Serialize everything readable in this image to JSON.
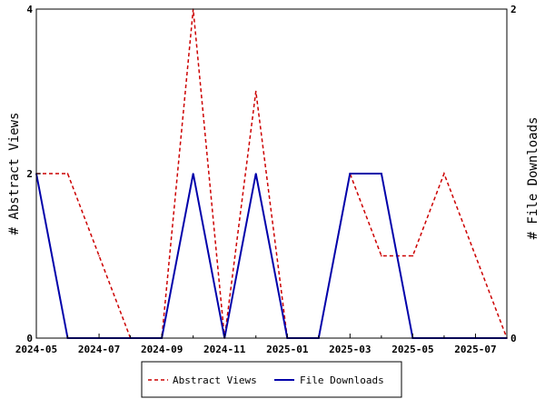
{
  "chart_data": {
    "type": "line",
    "x": [
      "2024-05",
      "2024-06",
      "2024-07",
      "2024-08",
      "2024-09",
      "2024-10",
      "2024-11",
      "2024-12",
      "2025-01",
      "2025-02",
      "2025-03",
      "2025-04",
      "2025-05",
      "2025-06",
      "2025-07",
      "2025-08"
    ],
    "x_ticks": [
      "2024-05",
      "2024-07",
      "2024-09",
      "2024-11",
      "2025-01",
      "2025-03",
      "2025-05",
      "2025-07"
    ],
    "series": [
      {
        "name": "Abstract Views",
        "axis": "left",
        "color": "#cc0000",
        "dash": "dashed",
        "values": [
          2,
          2,
          1,
          0,
          0,
          4,
          0,
          3,
          0,
          0,
          2,
          1,
          1,
          2,
          1,
          0
        ]
      },
      {
        "name": "File Downloads",
        "axis": "right",
        "color": "#0000aa",
        "dash": "solid",
        "values": [
          1,
          0,
          0,
          0,
          0,
          1,
          0,
          1,
          0,
          0,
          1,
          1,
          0,
          0,
          0,
          0
        ]
      }
    ],
    "ylabel": "# Abstract Views",
    "ylabel_right": "# File Downloads",
    "ylim": [
      0,
      4
    ],
    "ylim_right": [
      0,
      2
    ],
    "y_ticks": [
      "0",
      "2",
      "4"
    ],
    "y_ticks_right": [
      "0",
      "2"
    ],
    "grid": false,
    "legend_position": "bottom"
  }
}
